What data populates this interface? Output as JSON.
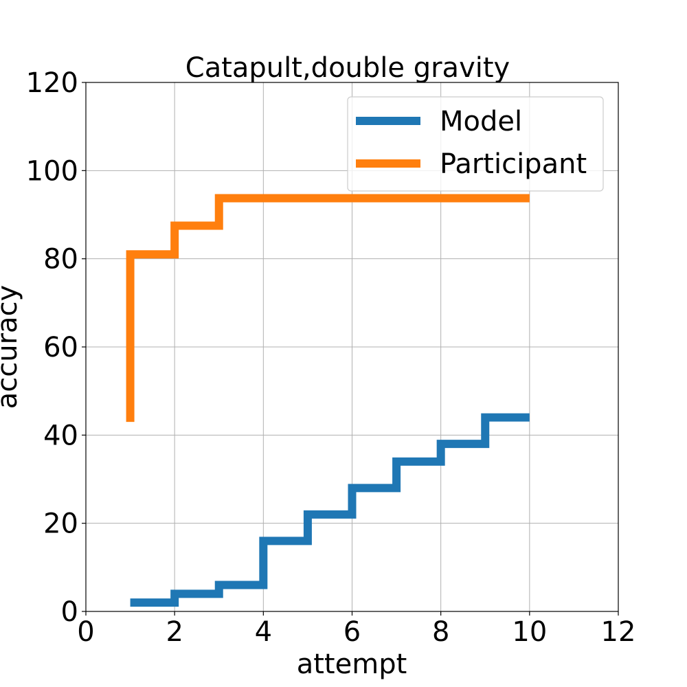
{
  "chart_data": {
    "type": "line",
    "step": "post",
    "title": "Catapult,double gravity",
    "xlabel": "attempt",
    "ylabel": "accuracy",
    "xlim": [
      0,
      12
    ],
    "ylim": [
      0,
      120
    ],
    "xticks": [
      0,
      2,
      4,
      6,
      8,
      10,
      12
    ],
    "yticks": [
      0,
      20,
      40,
      60,
      80,
      100,
      120
    ],
    "grid": true,
    "legend_position": "top-right",
    "series": [
      {
        "name": "Model",
        "color": "#1f77b4",
        "x": [
          1,
          2,
          3,
          4,
          5,
          6,
          7,
          8,
          9,
          10
        ],
        "values": [
          2,
          4,
          6,
          16,
          22,
          28,
          34,
          38,
          44,
          44
        ]
      },
      {
        "name": "Participant",
        "color": "#ff7f0e",
        "x": [
          1,
          1,
          2,
          3,
          4,
          5,
          6,
          7,
          8,
          9,
          10
        ],
        "values": [
          43,
          81,
          87.5,
          93.75,
          93.75,
          93.75,
          93.75,
          93.75,
          93.75,
          93.75,
          93.75
        ]
      }
    ]
  }
}
